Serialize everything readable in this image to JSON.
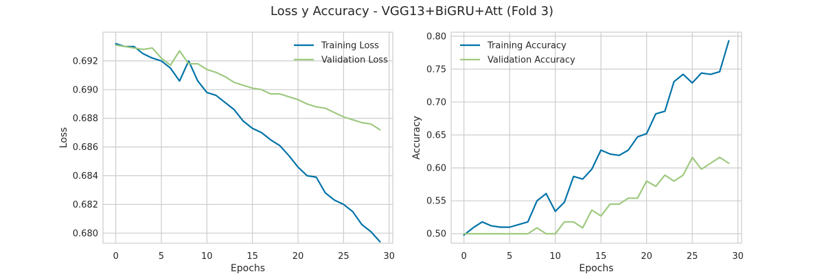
{
  "figure_title": "Loss y Accuracy - VGG13+BiGRU+Att (Fold 3)",
  "colors": {
    "training": "#0072a8",
    "validation": "#9ec97f",
    "grid": "#cccccc",
    "spine": "#cccccc"
  },
  "chart_data": [
    {
      "type": "line",
      "xlabel": "Epochs",
      "ylabel": "Loss",
      "xlim": [
        -1.4,
        30.4
      ],
      "ylim": [
        0.6793,
        0.694
      ],
      "xticks": [
        0,
        5,
        10,
        15,
        20,
        25,
        30
      ],
      "yticks": [
        0.68,
        0.682,
        0.684,
        0.686,
        0.688,
        0.69,
        0.692
      ],
      "ytick_labels": [
        "0.680",
        "0.682",
        "0.684",
        "0.686",
        "0.688",
        "0.690",
        "0.692"
      ],
      "grid": true,
      "legend_position": "top-right",
      "x": [
        0,
        1,
        2,
        3,
        4,
        5,
        6,
        7,
        8,
        9,
        10,
        11,
        12,
        13,
        14,
        15,
        16,
        17,
        18,
        19,
        20,
        21,
        22,
        23,
        24,
        25,
        26,
        27,
        28,
        29
      ],
      "series": [
        {
          "name": "Training Loss",
          "color": "#0072a8",
          "values": [
            0.6932,
            0.693,
            0.693,
            0.6925,
            0.6922,
            0.692,
            0.6915,
            0.6906,
            0.692,
            0.6906,
            0.6898,
            0.6896,
            0.6891,
            0.6886,
            0.6878,
            0.6873,
            0.687,
            0.6865,
            0.6861,
            0.6854,
            0.6846,
            0.684,
            0.6839,
            0.6828,
            0.6823,
            0.682,
            0.6815,
            0.6806,
            0.6801,
            0.6794
          ]
        },
        {
          "name": "Validation Loss",
          "color": "#9ec97f",
          "values": [
            0.6931,
            0.693,
            0.6929,
            0.6928,
            0.6929,
            0.6922,
            0.6917,
            0.6927,
            0.6918,
            0.6918,
            0.6914,
            0.6912,
            0.6909,
            0.6905,
            0.6903,
            0.6901,
            0.69,
            0.6897,
            0.6897,
            0.6895,
            0.6893,
            0.689,
            0.6888,
            0.6887,
            0.6884,
            0.6881,
            0.6879,
            0.6877,
            0.6876,
            0.6872
          ]
        }
      ]
    },
    {
      "type": "line",
      "xlabel": "Epochs",
      "ylabel": "Accuracy",
      "xlim": [
        -1.4,
        30.4
      ],
      "ylim": [
        0.4857,
        0.806
      ],
      "xticks": [
        0,
        5,
        10,
        15,
        20,
        25,
        30
      ],
      "yticks": [
        0.5,
        0.55,
        0.6,
        0.65,
        0.7,
        0.75,
        0.8
      ],
      "ytick_labels": [
        "0.50",
        "0.55",
        "0.60",
        "0.65",
        "0.70",
        "0.75",
        "0.80"
      ],
      "grid": true,
      "legend_position": "top-left",
      "x": [
        0,
        1,
        2,
        3,
        4,
        5,
        6,
        7,
        8,
        9,
        10,
        11,
        12,
        13,
        14,
        15,
        16,
        17,
        18,
        19,
        20,
        21,
        22,
        23,
        24,
        25,
        26,
        27,
        28,
        29
      ],
      "series": [
        {
          "name": "Training Accuracy",
          "color": "#0072a8",
          "values": [
            0.498,
            0.509,
            0.518,
            0.512,
            0.51,
            0.51,
            0.514,
            0.518,
            0.55,
            0.561,
            0.534,
            0.548,
            0.587,
            0.583,
            0.598,
            0.627,
            0.621,
            0.619,
            0.627,
            0.647,
            0.652,
            0.682,
            0.686,
            0.731,
            0.742,
            0.729,
            0.744,
            0.742,
            0.746,
            0.793
          ]
        },
        {
          "name": "Validation Accuracy",
          "color": "#9ec97f",
          "values": [
            0.5,
            0.5,
            0.5,
            0.5,
            0.5,
            0.5,
            0.5,
            0.5,
            0.509,
            0.5,
            0.5,
            0.518,
            0.518,
            0.509,
            0.536,
            0.527,
            0.545,
            0.545,
            0.554,
            0.554,
            0.58,
            0.572,
            0.589,
            0.58,
            0.589,
            0.616,
            0.598,
            0.607,
            0.616,
            0.607
          ]
        }
      ]
    }
  ]
}
